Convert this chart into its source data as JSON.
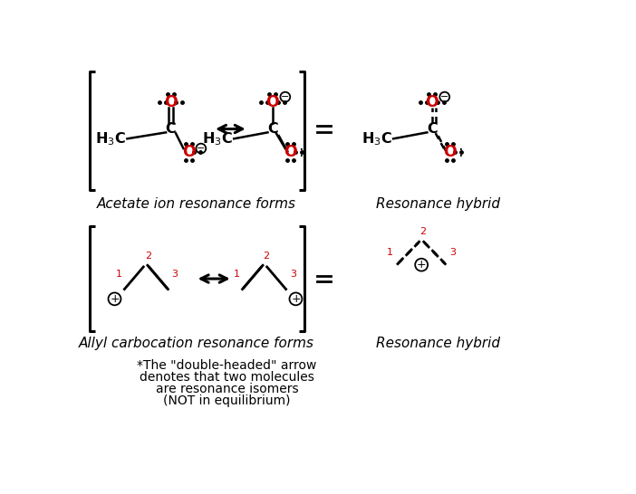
{
  "bg_color": "#ffffff",
  "red_color": "#cc0000",
  "black_color": "#000000",
  "label_acetate": "Acetate ion resonance forms",
  "label_resonance1": "Resonance hybrid",
  "label_allyl": "Allyl carbocation resonance forms",
  "label_resonance2": "Resonance hybrid",
  "note_line1": "*The \"double-headed\" arrow",
  "note_line2": "denotes that two molecules",
  "note_line3": "are resonance isomers",
  "note_line4": "(NOT in equilibrium)"
}
